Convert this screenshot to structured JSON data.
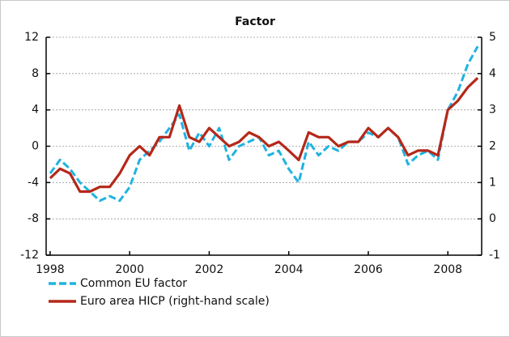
{
  "chart_data": {
    "type": "line",
    "title": "Factor",
    "x": [
      1998,
      1998.25,
      1998.5,
      1998.75,
      1999,
      1999.25,
      1999.5,
      1999.75,
      2000,
      2000.25,
      2000.5,
      2000.75,
      2001,
      2001.25,
      2001.5,
      2001.75,
      2002,
      2002.25,
      2002.5,
      2002.75,
      2003,
      2003.25,
      2003.5,
      2003.75,
      2004,
      2004.25,
      2004.5,
      2004.75,
      2005,
      2005.25,
      2005.5,
      2005.75,
      2006,
      2006.25,
      2006.5,
      2006.75,
      2007,
      2007.25,
      2007.5,
      2007.75,
      2008,
      2008.25,
      2008.5,
      2008.75
    ],
    "series": [
      {
        "name": "Common EU factor",
        "color": "#1fb3e0",
        "dash": true,
        "values": [
          -3,
          -1.5,
          -2.5,
          -4,
          -5,
          -6,
          -5.5,
          -6,
          -4.5,
          -1.5,
          -0.5,
          0.5,
          2,
          3.5,
          -0.5,
          1.5,
          0,
          2,
          -1.5,
          0,
          0.5,
          1,
          -1,
          -0.5,
          -2.5,
          -4,
          0.5,
          -1,
          0,
          -0.5,
          0.5,
          0.5,
          1.5,
          1,
          2,
          1,
          -2,
          -1,
          -0.5,
          -1.5,
          4,
          6,
          9,
          11
        ]
      },
      {
        "name": "Euro area HICP (right-hand scale)",
        "color": "#b5281a",
        "axis": "y2",
        "values": [
          1.12,
          1.38,
          1.25,
          0.75,
          0.75,
          0.88,
          0.88,
          1.25,
          1.75,
          2.0,
          1.75,
          2.25,
          2.25,
          3.12,
          2.25,
          2.12,
          2.5,
          2.25,
          2.0,
          2.12,
          2.38,
          2.25,
          2.0,
          2.12,
          1.88,
          1.62,
          2.38,
          2.25,
          2.25,
          2.0,
          2.12,
          2.12,
          2.5,
          2.25,
          2.5,
          2.25,
          1.75,
          1.88,
          1.88,
          1.75,
          3.0,
          3.25,
          3.62,
          3.88
        ]
      }
    ],
    "xlim": [
      1997.9,
      2008.85
    ],
    "xticks": [
      1998,
      2000,
      2002,
      2004,
      2006,
      2008
    ],
    "ylim": [
      -12,
      12
    ],
    "yticks": [
      -12,
      -8,
      -4,
      0,
      4,
      8,
      12
    ],
    "y2lim": [
      -1,
      5
    ],
    "y2ticks": [
      -1,
      0,
      1,
      2,
      3,
      4,
      5
    ],
    "grid": true
  }
}
